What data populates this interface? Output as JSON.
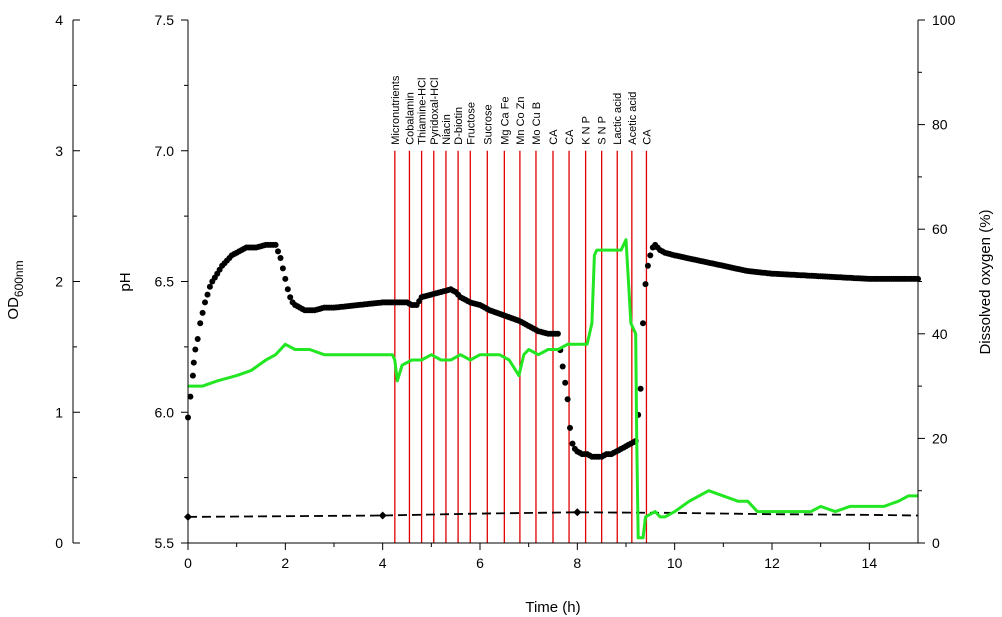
{
  "chart_data": {
    "type": "scatter",
    "xlabel": "Time (h)",
    "xlim": [
      0,
      15
    ],
    "x_ticks": [
      "0",
      "2",
      "4",
      "6",
      "8",
      "10",
      "12",
      "14"
    ],
    "x_tick_values": [
      0,
      2,
      4,
      6,
      8,
      10,
      12,
      14
    ],
    "axes": {
      "od": {
        "label": "OD",
        "label_sub": "600nm",
        "lim": [
          0,
          4
        ],
        "ticks": [
          "0",
          "1",
          "2",
          "3",
          "4"
        ],
        "tick_values": [
          0,
          1,
          2,
          3,
          4
        ]
      },
      "ph": {
        "label": "pH",
        "lim": [
          5.5,
          7.5
        ],
        "ticks": [
          "5.5",
          "6.0",
          "6.5",
          "7.0",
          "7.5"
        ],
        "tick_values": [
          5.5,
          6.0,
          6.5,
          7.0,
          7.5
        ]
      },
      "do": {
        "label": "Dissolved oxygen (%)",
        "lim": [
          0,
          100
        ],
        "ticks": [
          "0",
          "20",
          "40",
          "60",
          "80",
          "100"
        ],
        "tick_values": [
          0,
          20,
          40,
          60,
          80,
          100
        ]
      }
    },
    "colors": {
      "ph": "#000000",
      "od": "#000000",
      "do": "#22e622",
      "events": "#e00000"
    },
    "series": [
      {
        "key": "ph",
        "axis": "ph",
        "style": "dots",
        "x": [
          0.0,
          0.05,
          0.1,
          0.12,
          0.15,
          0.2,
          0.25,
          0.3,
          0.35,
          0.4,
          0.45,
          0.5,
          0.6,
          0.7,
          0.8,
          0.9,
          1.0,
          1.2,
          1.4,
          1.6,
          1.8,
          1.9,
          1.95,
          2.0,
          2.05,
          2.1,
          2.15,
          2.2,
          2.3,
          2.4,
          2.6,
          2.8,
          3.0,
          3.5,
          4.0,
          4.3,
          4.5,
          4.6,
          4.7,
          4.8,
          5.0,
          5.2,
          5.4,
          5.5,
          5.6,
          5.8,
          6.0,
          6.2,
          6.5,
          6.8,
          7.0,
          7.2,
          7.4,
          7.5,
          7.6,
          7.8,
          7.85,
          7.9,
          7.95,
          8.0,
          8.1,
          8.2,
          8.3,
          8.4,
          8.5,
          8.6,
          8.7,
          8.8,
          8.9,
          9.0,
          9.1,
          9.2,
          9.3,
          9.35,
          9.4,
          9.45,
          9.5,
          9.55,
          9.6,
          9.7,
          9.8,
          10.0,
          10.5,
          11.0,
          11.5,
          12.0,
          13.0,
          14.0,
          15.0
        ],
        "y": [
          5.98,
          6.06,
          6.14,
          6.19,
          6.24,
          6.28,
          6.34,
          6.38,
          6.42,
          6.45,
          6.48,
          6.5,
          6.53,
          6.56,
          6.58,
          6.6,
          6.61,
          6.63,
          6.63,
          6.64,
          6.64,
          6.59,
          6.55,
          6.51,
          6.47,
          6.44,
          6.42,
          6.41,
          6.4,
          6.39,
          6.39,
          6.4,
          6.4,
          6.41,
          6.42,
          6.42,
          6.42,
          6.41,
          6.41,
          6.44,
          6.45,
          6.46,
          6.47,
          6.46,
          6.44,
          6.42,
          6.41,
          6.39,
          6.37,
          6.35,
          6.33,
          6.31,
          6.3,
          6.3,
          6.3,
          6.05,
          5.94,
          5.88,
          5.86,
          5.85,
          5.84,
          5.84,
          5.83,
          5.83,
          5.83,
          5.84,
          5.84,
          5.85,
          5.86,
          5.87,
          5.88,
          5.89,
          6.09,
          6.34,
          6.49,
          6.56,
          6.6,
          6.63,
          6.64,
          6.62,
          6.61,
          6.6,
          6.58,
          6.56,
          6.54,
          6.53,
          6.52,
          6.51,
          6.51
        ]
      },
      {
        "key": "od",
        "axis": "od",
        "style": "dashed-markers",
        "x": [
          0,
          2,
          4,
          6,
          8,
          10,
          12,
          14,
          15
        ],
        "y": [
          0.2,
          0.205,
          0.21,
          0.225,
          0.235,
          0.23,
          0.22,
          0.215,
          0.21
        ],
        "marker_x": [
          0,
          4,
          8
        ]
      },
      {
        "key": "do",
        "axis": "do",
        "style": "line",
        "x": [
          0.0,
          0.3,
          0.6,
          1.0,
          1.3,
          1.6,
          1.8,
          2.0,
          2.2,
          2.5,
          2.8,
          3.0,
          3.3,
          3.6,
          4.0,
          4.2,
          4.25,
          4.3,
          4.4,
          4.6,
          4.8,
          5.0,
          5.2,
          5.4,
          5.6,
          5.8,
          6.0,
          6.2,
          6.4,
          6.6,
          6.8,
          6.9,
          7.0,
          7.2,
          7.4,
          7.6,
          7.8,
          8.0,
          8.2,
          8.25,
          8.3,
          8.35,
          8.4,
          8.6,
          8.8,
          8.9,
          9.0,
          9.1,
          9.2,
          9.22,
          9.25,
          9.35,
          9.4,
          9.6,
          9.7,
          9.8,
          10.0,
          10.3,
          10.5,
          10.7,
          11.0,
          11.3,
          11.5,
          11.7,
          12.0,
          12.3,
          12.6,
          12.8,
          13.0,
          13.3,
          13.6,
          14.0,
          14.3,
          14.6,
          14.8,
          15.0
        ],
        "y": [
          30,
          30,
          31,
          32,
          33,
          35,
          36,
          38,
          37,
          37,
          36,
          36,
          36,
          36,
          36,
          36,
          35,
          31,
          34,
          35,
          35,
          36,
          35,
          35,
          36,
          35,
          36,
          36,
          36,
          35,
          32,
          36,
          37,
          36,
          37,
          37,
          38,
          38,
          38,
          40,
          42,
          55,
          56,
          56,
          56,
          56,
          58,
          42,
          40,
          20,
          1,
          1,
          5,
          6,
          5,
          5,
          6,
          8,
          9,
          10,
          9,
          8,
          8,
          6,
          6,
          6,
          6,
          6,
          7,
          6,
          7,
          7,
          7,
          8,
          9,
          9
        ]
      }
    ],
    "events": [
      {
        "x": 4.25,
        "label": "Micronutrients"
      },
      {
        "x": 4.55,
        "label": "Cobalamin"
      },
      {
        "x": 4.8,
        "label": "Thiamine-HCl"
      },
      {
        "x": 5.05,
        "label": "Pyridoxal-HCl"
      },
      {
        "x": 5.3,
        "label": "Niacin"
      },
      {
        "x": 5.55,
        "label": "D-biotin"
      },
      {
        "x": 5.8,
        "label": "Fructose"
      },
      {
        "x": 6.15,
        "label": "Sucrose"
      },
      {
        "x": 6.5,
        "label": "Mg Ca Fe"
      },
      {
        "x": 6.82,
        "label": "Mn Co Zn"
      },
      {
        "x": 7.15,
        "label": "Mo Cu B"
      },
      {
        "x": 7.5,
        "label": "CA"
      },
      {
        "x": 7.83,
        "label": "CA"
      },
      {
        "x": 8.17,
        "label": "K N P"
      },
      {
        "x": 8.5,
        "label": "S N P"
      },
      {
        "x": 8.82,
        "label": "Lactic acid"
      },
      {
        "x": 9.12,
        "label": "Acetic acid"
      },
      {
        "x": 9.42,
        "label": "CA"
      }
    ]
  }
}
